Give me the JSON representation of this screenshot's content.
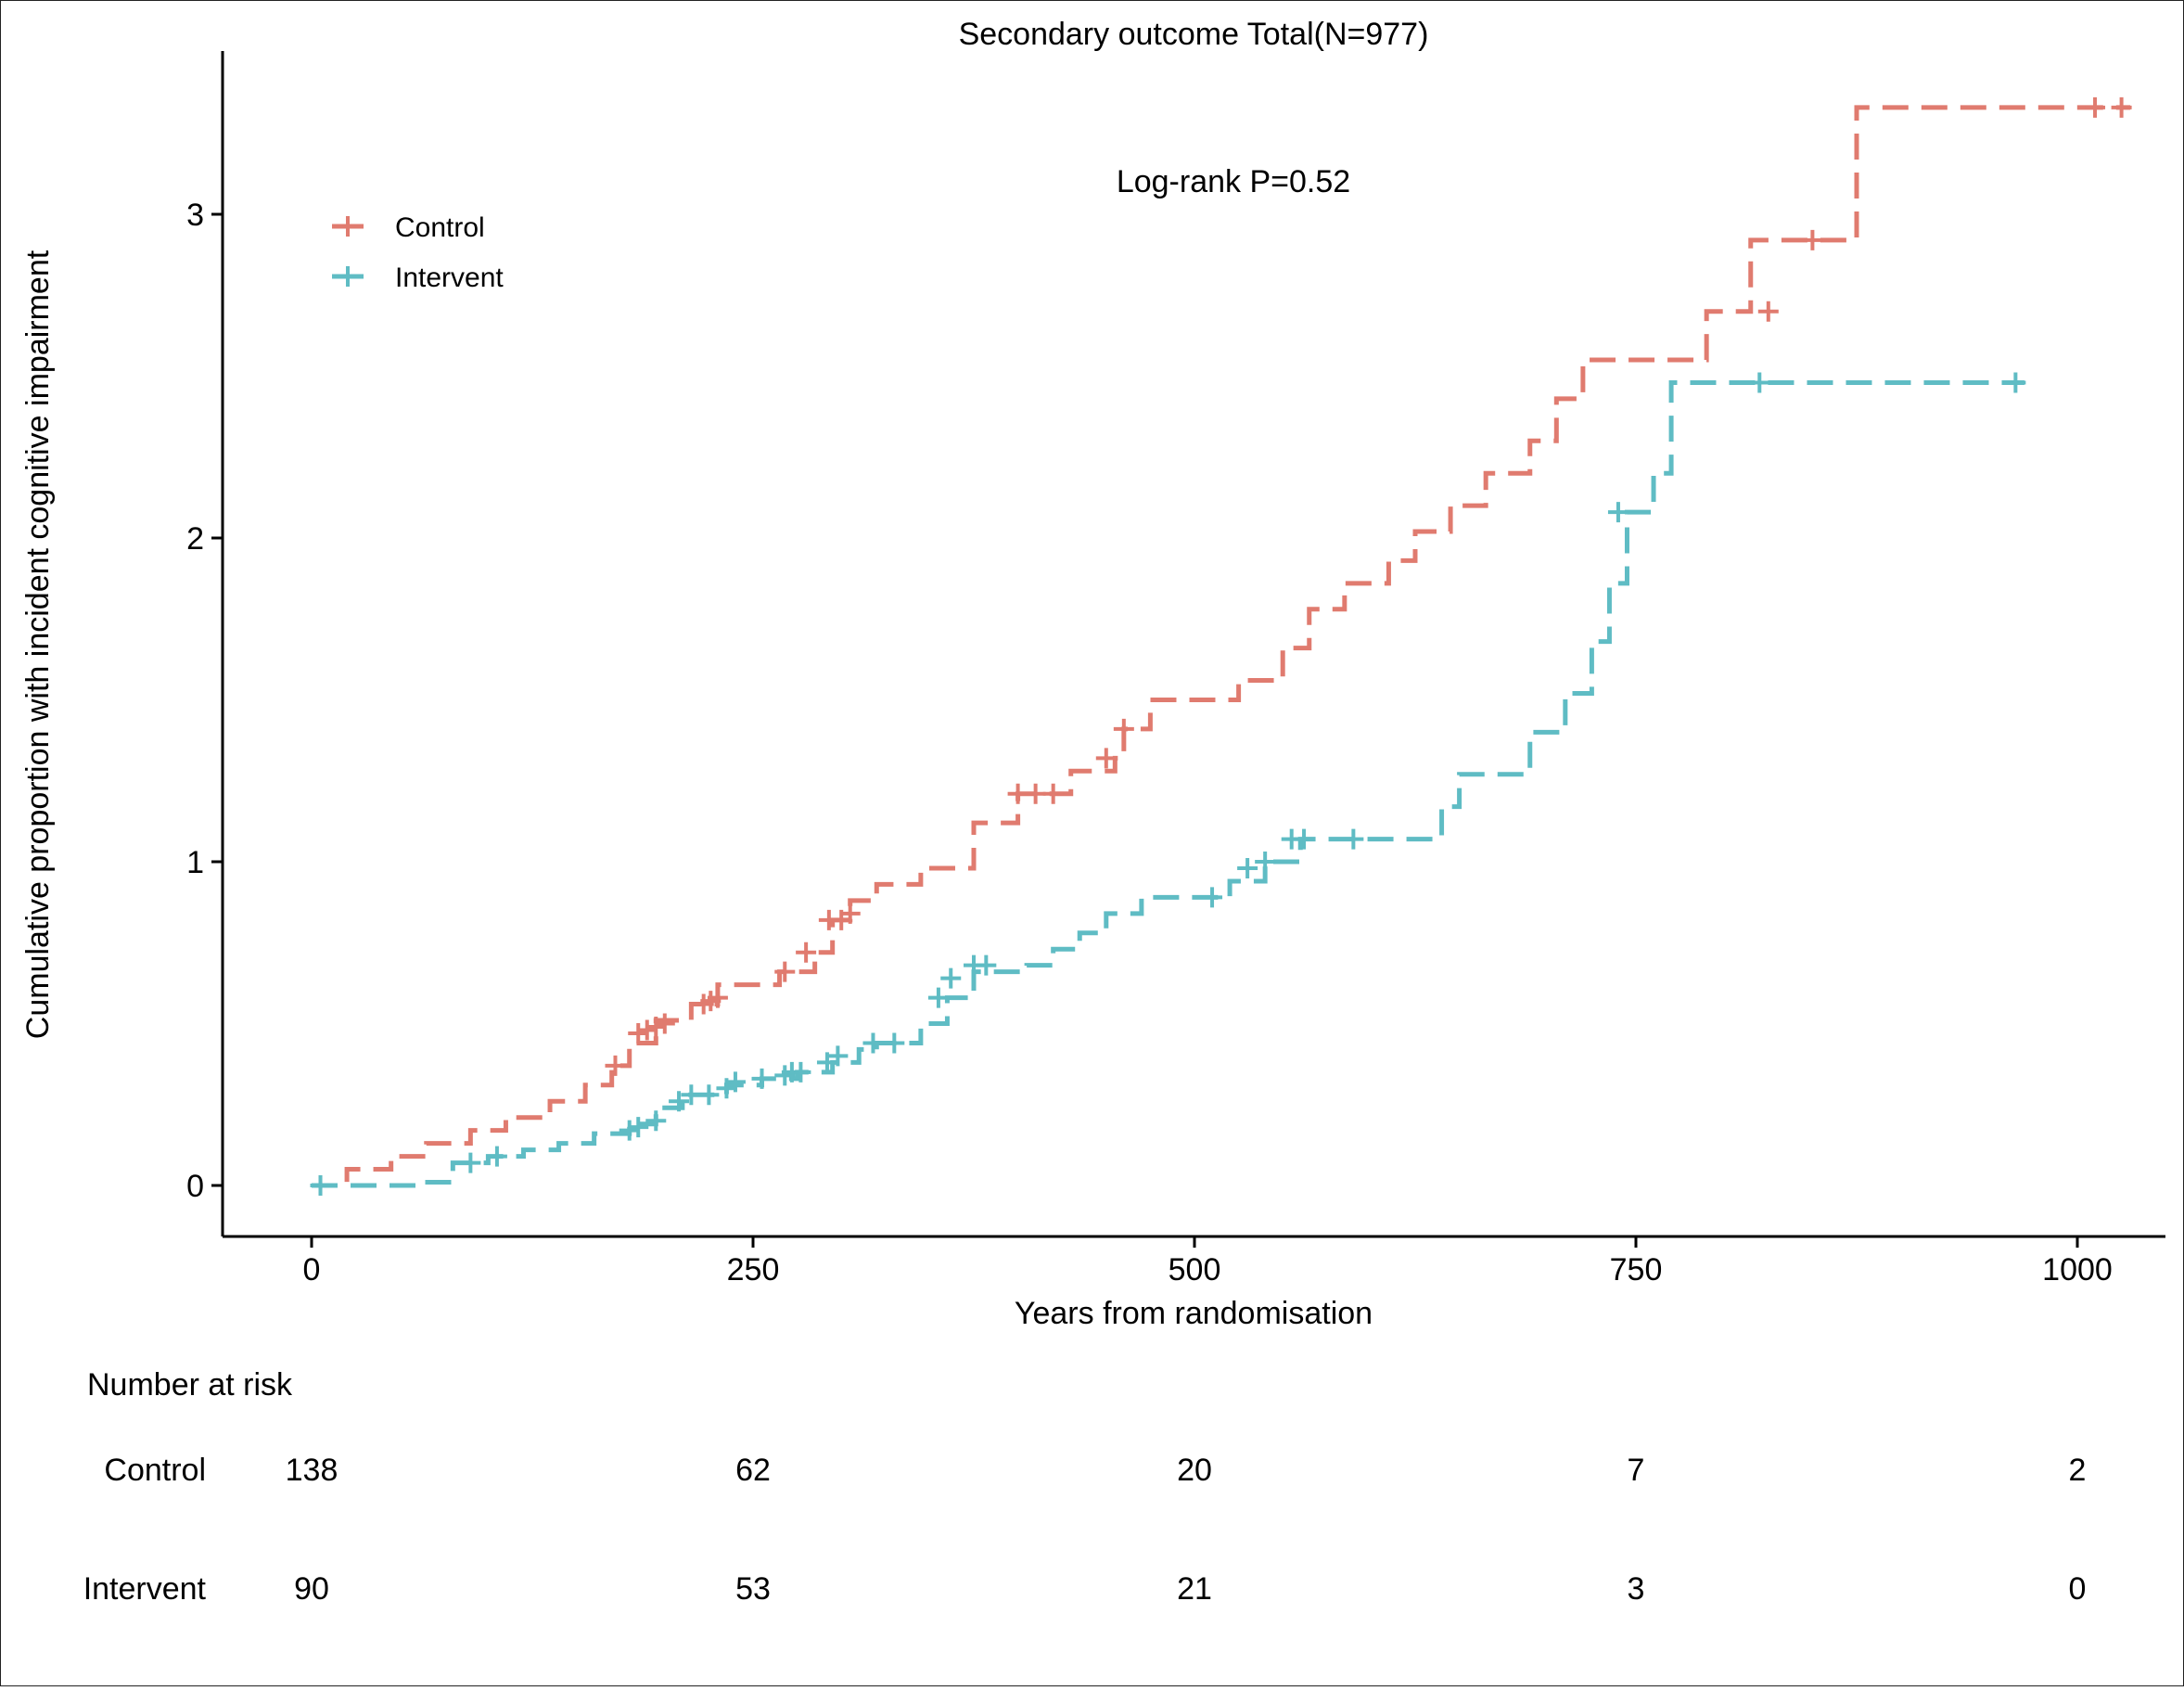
{
  "chart_data": {
    "type": "line",
    "subtype": "kaplan-meier-cumulative",
    "title": "Secondary outcome Total(N=977)",
    "xlabel": "Years from randomisation",
    "ylabel": "Cumulative proportion with incident cognitive impairment",
    "xlim": [
      -25,
      1050
    ],
    "ylim": [
      -0.16,
      3.5
    ],
    "xticks": [
      0,
      250,
      500,
      750,
      1000
    ],
    "yticks": [
      0,
      1,
      2,
      3
    ],
    "grid": false,
    "legend_position": "top-left",
    "annotation": "Log-rank P=0.52",
    "series": [
      {
        "name": "Control",
        "color": "#E07B6F",
        "line_style": "dashed",
        "x": [
          0,
          20,
          45,
          65,
          90,
          110,
          135,
          155,
          170,
          180,
          195,
          215,
          230,
          265,
          285,
          295,
          305,
          320,
          345,
          375,
          400,
          430,
          455,
          460,
          475,
          525,
          550,
          565,
          585,
          610,
          625,
          645,
          665,
          690,
          705,
          720,
          760,
          790,
          815,
          830,
          875,
          890,
          1030
        ],
        "y": [
          0,
          0.05,
          0.09,
          0.13,
          0.17,
          0.21,
          0.26,
          0.31,
          0.37,
          0.44,
          0.51,
          0.56,
          0.62,
          0.66,
          0.72,
          0.82,
          0.88,
          0.93,
          0.98,
          1.12,
          1.21,
          1.28,
          1.32,
          1.41,
          1.5,
          1.56,
          1.66,
          1.78,
          1.86,
          1.93,
          2.02,
          2.1,
          2.2,
          2.3,
          2.43,
          2.55,
          2.55,
          2.7,
          2.92,
          2.92,
          3.33,
          3.33,
          3.33
        ],
        "censor_x": [
          5,
          172,
          185,
          190,
          195,
          200,
          222,
          226,
          230,
          268,
          280,
          293,
          300,
          305,
          400,
          410,
          420,
          450,
          460,
          825,
          850,
          1010,
          1025
        ],
        "censor_y": [
          0,
          0.37,
          0.47,
          0.48,
          0.49,
          0.5,
          0.56,
          0.57,
          0.58,
          0.66,
          0.72,
          0.82,
          0.82,
          0.84,
          1.21,
          1.21,
          1.21,
          1.32,
          1.41,
          2.7,
          2.92,
          3.33,
          3.33
        ]
      },
      {
        "name": "Intervent",
        "color": "#5FBCC4",
        "line_style": "dashed",
        "x": [
          0,
          60,
          80,
          100,
          120,
          140,
          160,
          180,
          195,
          210,
          235,
          255,
          275,
          295,
          310,
          320,
          345,
          360,
          375,
          405,
          420,
          435,
          450,
          470,
          500,
          520,
          540,
          560,
          600,
          640,
          650,
          665,
          690,
          710,
          725,
          735,
          745,
          760,
          770,
          790,
          970
        ],
        "y": [
          0,
          0.01,
          0.07,
          0.09,
          0.11,
          0.13,
          0.16,
          0.19,
          0.24,
          0.28,
          0.31,
          0.33,
          0.35,
          0.38,
          0.42,
          0.44,
          0.5,
          0.58,
          0.66,
          0.68,
          0.73,
          0.78,
          0.84,
          0.89,
          0.89,
          0.94,
          1.0,
          1.07,
          1.07,
          1.17,
          1.27,
          1.27,
          1.4,
          1.52,
          1.68,
          1.86,
          2.08,
          2.2,
          2.48,
          2.48,
          2.48
        ],
        "censor_x": [
          5,
          90,
          105,
          180,
          185,
          195,
          208,
          215,
          225,
          235,
          240,
          255,
          268,
          272,
          277,
          292,
          298,
          318,
          330,
          355,
          362,
          375,
          382,
          510,
          530,
          540,
          555,
          562,
          590,
          740,
          820,
          965
        ],
        "censor_y": [
          0,
          0.07,
          0.09,
          0.17,
          0.18,
          0.2,
          0.26,
          0.28,
          0.28,
          0.3,
          0.32,
          0.33,
          0.34,
          0.35,
          0.35,
          0.38,
          0.4,
          0.44,
          0.44,
          0.58,
          0.64,
          0.68,
          0.68,
          0.89,
          0.98,
          1.0,
          1.07,
          1.07,
          1.07,
          2.08,
          2.48,
          2.48
        ]
      }
    ],
    "risk_table": {
      "title": "Number at risk",
      "times": [
        0,
        250,
        500,
        750,
        1000
      ],
      "rows": [
        {
          "name": "Control",
          "values": [
            "138",
            "62",
            "20",
            "7",
            "2"
          ]
        },
        {
          "name": "Intervent",
          "values": [
            "90",
            "53",
            "21",
            "3",
            "0"
          ]
        }
      ]
    }
  }
}
